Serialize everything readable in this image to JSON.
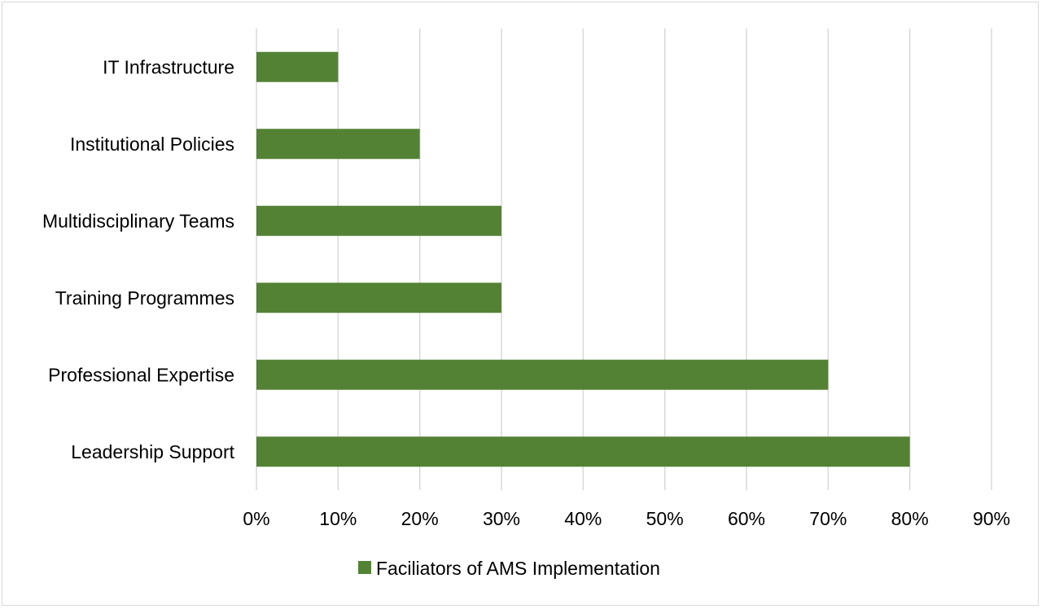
{
  "chart_data": {
    "type": "bar",
    "orientation": "horizontal",
    "categories": [
      "Leadership Support",
      "Professional Expertise",
      "Training Programmes",
      "Multidisciplinary Teams",
      "Institutional Policies",
      "IT Infrastructure"
    ],
    "series": [
      {
        "name": "Faciliators of AMS Implementation",
        "values": [
          80,
          70,
          30,
          30,
          20,
          10
        ],
        "color": "#548235"
      }
    ],
    "x_ticks": [
      "0%",
      "10%",
      "20%",
      "30%",
      "40%",
      "50%",
      "60%",
      "70%",
      "80%",
      "90%"
    ],
    "xlim": [
      0,
      90
    ],
    "x_unit": "%",
    "grid": "vertical",
    "legend_position": "bottom",
    "gridline_color": "#d9d9d9"
  }
}
